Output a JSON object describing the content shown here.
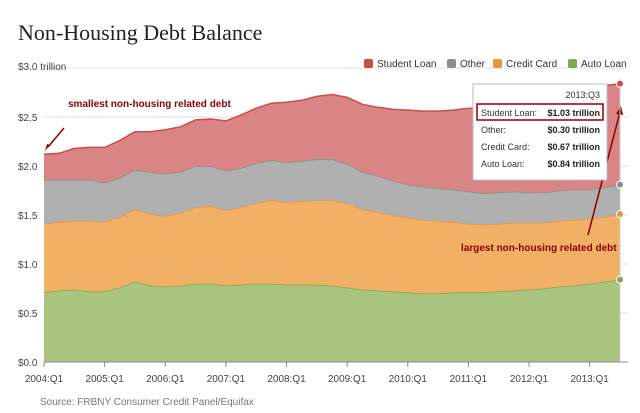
{
  "header": {
    "title": "Non-Housing Debt Balance",
    "source": "Source: FRBNY Consumer Credit Panel/Equifax"
  },
  "chart_data": {
    "type": "area",
    "stacked": true,
    "ylabel": "$3.0  trillion",
    "ylim": [
      0,
      3.0
    ],
    "yticks": [
      "$0.0",
      "$0.5",
      "$1.0",
      "$1.5",
      "$2.0",
      "$2.5",
      "$3.0"
    ],
    "xtick_labels": [
      "2004:Q1",
      "2005:Q1",
      "2006:Q1",
      "2007:Q1",
      "2008:Q1",
      "2009:Q1",
      "2010:Q1",
      "2011:Q1",
      "2012:Q1",
      "2013:Q1"
    ],
    "grid": true,
    "legend_position": "top-right",
    "x": [
      "2004:Q1",
      "2004:Q2",
      "2004:Q3",
      "2004:Q4",
      "2005:Q1",
      "2005:Q2",
      "2005:Q3",
      "2005:Q4",
      "2006:Q1",
      "2006:Q2",
      "2006:Q3",
      "2006:Q4",
      "2007:Q1",
      "2007:Q2",
      "2007:Q3",
      "2007:Q4",
      "2008:Q1",
      "2008:Q2",
      "2008:Q3",
      "2008:Q4",
      "2009:Q1",
      "2009:Q2",
      "2009:Q3",
      "2009:Q4",
      "2010:Q1",
      "2010:Q2",
      "2010:Q3",
      "2010:Q4",
      "2011:Q1",
      "2011:Q2",
      "2011:Q3",
      "2011:Q4",
      "2012:Q1",
      "2012:Q2",
      "2012:Q3",
      "2012:Q4",
      "2013:Q1",
      "2013:Q2",
      "2013:Q3"
    ],
    "series": [
      {
        "name": "Auto Loan",
        "color": "#7ea84a",
        "fill": "#a8c47e",
        "values": [
          0.71,
          0.73,
          0.74,
          0.72,
          0.72,
          0.76,
          0.82,
          0.78,
          0.77,
          0.78,
          0.8,
          0.8,
          0.78,
          0.79,
          0.8,
          0.8,
          0.79,
          0.79,
          0.79,
          0.78,
          0.76,
          0.74,
          0.73,
          0.72,
          0.71,
          0.7,
          0.7,
          0.71,
          0.71,
          0.71,
          0.72,
          0.73,
          0.74,
          0.75,
          0.77,
          0.78,
          0.8,
          0.82,
          0.84
        ]
      },
      {
        "name": "Credit Card",
        "color": "#e8963a",
        "fill": "#f2b067",
        "values": [
          0.7,
          0.7,
          0.7,
          0.72,
          0.71,
          0.72,
          0.74,
          0.73,
          0.72,
          0.74,
          0.78,
          0.79,
          0.77,
          0.79,
          0.82,
          0.85,
          0.84,
          0.85,
          0.86,
          0.87,
          0.86,
          0.82,
          0.8,
          0.78,
          0.76,
          0.75,
          0.74,
          0.72,
          0.7,
          0.69,
          0.69,
          0.69,
          0.68,
          0.67,
          0.67,
          0.67,
          0.66,
          0.66,
          0.67
        ]
      },
      {
        "name": "Other",
        "color": "#8d8d8d",
        "fill": "#b0b0b0",
        "values": [
          0.45,
          0.43,
          0.42,
          0.42,
          0.4,
          0.4,
          0.4,
          0.43,
          0.43,
          0.42,
          0.42,
          0.41,
          0.4,
          0.4,
          0.41,
          0.41,
          0.41,
          0.41,
          0.42,
          0.42,
          0.4,
          0.38,
          0.37,
          0.35,
          0.34,
          0.34,
          0.33,
          0.33,
          0.33,
          0.32,
          0.32,
          0.32,
          0.31,
          0.31,
          0.31,
          0.31,
          0.3,
          0.3,
          0.3
        ]
      },
      {
        "name": "Student Loan",
        "color": "#c94d4d",
        "fill": "#d98585",
        "values": [
          0.26,
          0.27,
          0.32,
          0.33,
          0.36,
          0.38,
          0.39,
          0.41,
          0.45,
          0.46,
          0.47,
          0.48,
          0.51,
          0.54,
          0.56,
          0.58,
          0.61,
          0.62,
          0.64,
          0.66,
          0.68,
          0.69,
          0.7,
          0.73,
          0.76,
          0.77,
          0.79,
          0.81,
          0.85,
          0.87,
          0.87,
          0.9,
          0.95,
          0.97,
          0.99,
          1.0,
          1.03,
          1.04,
          1.03
        ]
      }
    ],
    "tooltip": {
      "title": "2013:Q3",
      "rows": [
        {
          "label": "Student Loan:",
          "value": "$1.03 trillion"
        },
        {
          "label": "Other:",
          "value": "$0.30 trillion"
        },
        {
          "label": "Credit Card:",
          "value": "$0.67 trillion"
        },
        {
          "label": "Auto Loan:",
          "value": "$0.84 trillion"
        }
      ]
    },
    "annotations": [
      {
        "text": "smallest non-housing related debt",
        "color": "#8b0000"
      },
      {
        "text": "largest non-housing related debt",
        "color": "#8b0000"
      }
    ]
  }
}
